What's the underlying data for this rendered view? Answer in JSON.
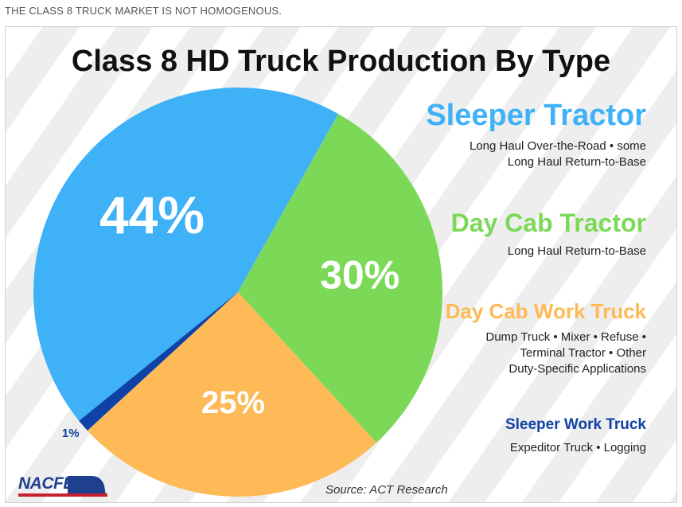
{
  "caption": "THE CLASS 8 TRUCK MARKET IS NOT HOMOGENOUS.",
  "source": "Source: ACT Research",
  "logo_text": "NACFE",
  "chart_data": {
    "type": "pie",
    "title": "Class 8 HD Truck Production By Type",
    "slices": [
      {
        "name": "Sleeper Tractor",
        "value": 44,
        "label": "44%",
        "color": "#3fb1f6",
        "desc": [
          "Long Haul Over-the-Road • some",
          "Long Haul Return-to-Base"
        ]
      },
      {
        "name": "Day Cab Tractor",
        "value": 30,
        "label": "30%",
        "color": "#7cd957",
        "desc": [
          "Long Haul Return-to-Base"
        ]
      },
      {
        "name": "Day Cab Work Truck",
        "value": 25,
        "label": "25%",
        "color": "#fdba57",
        "desc": [
          "Dump Truck • Mixer • Refuse •",
          "Terminal Tractor • Other",
          "Duty-Specific Applications"
        ]
      },
      {
        "name": "Sleeper Work Truck",
        "value": 1,
        "label": "1%",
        "color": "#0f42a6",
        "desc": [
          "Expeditor Truck • Logging"
        ]
      }
    ]
  }
}
